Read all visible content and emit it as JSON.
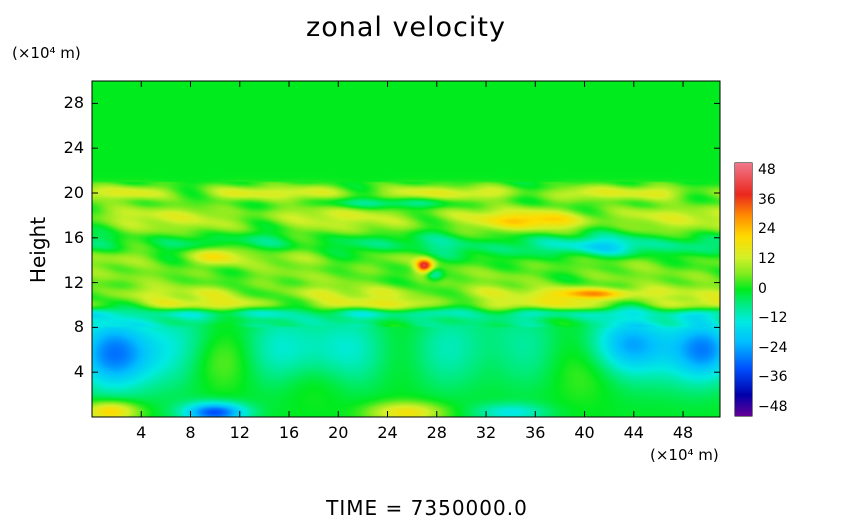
{
  "chart_data": {
    "type": "heatmap",
    "title": "zonal velocity",
    "ylabel": "Height",
    "xlabel": "",
    "x_unit": "(×10⁴ m)",
    "y_unit": "(×10⁴ m)",
    "xlim": [
      0,
      51
    ],
    "ylim": [
      0,
      30
    ],
    "x_ticks": [
      "4",
      "8",
      "12",
      "16",
      "20",
      "24",
      "28",
      "32",
      "36",
      "40",
      "44",
      "48"
    ],
    "y_ticks": [
      "4",
      "8",
      "12",
      "16",
      "20",
      "24",
      "28"
    ],
    "colorbar": {
      "ticks": [
        "48",
        "36",
        "24",
        "12",
        "0",
        "−12",
        "−24",
        "−36",
        "−48"
      ],
      "range": [
        -48,
        48
      ]
    },
    "background_value": 0,
    "features": [
      {
        "kind": "layer",
        "y_center": 20.0,
        "thickness": 0.7,
        "value": 14
      },
      {
        "kind": "layer",
        "y_center": 18.2,
        "thickness": 0.8,
        "value": 7
      },
      {
        "kind": "layer",
        "y_center": 17.2,
        "thickness": 1.2,
        "value": 9
      },
      {
        "kind": "layer",
        "y_center": 15.5,
        "thickness": 1.0,
        "value": -6
      },
      {
        "kind": "layer",
        "y_center": 14.2,
        "thickness": 1.0,
        "value": 8
      },
      {
        "kind": "layer",
        "y_center": 12.5,
        "thickness": 1.0,
        "value": 6
      },
      {
        "kind": "layer",
        "y_center": 11.0,
        "thickness": 0.8,
        "value": 12
      },
      {
        "kind": "layer",
        "y_center": 10.0,
        "thickness": 0.6,
        "value": 14
      },
      {
        "kind": "layer",
        "y_center": 9.3,
        "thickness": 0.5,
        "value": -8
      },
      {
        "kind": "layer",
        "y_center": 6.0,
        "thickness": 3.6,
        "value": -11
      },
      {
        "kind": "blob",
        "x": 2,
        "y": 5.5,
        "rx": 3,
        "ry": 3,
        "value": -16
      },
      {
        "kind": "blob",
        "x": 10,
        "y": 5,
        "rx": 3,
        "ry": 2.5,
        "value": 6
      },
      {
        "kind": "blob",
        "x": 18,
        "y": 3,
        "rx": 3,
        "ry": 2.2,
        "value": 4
      },
      {
        "kind": "blob",
        "x": 33,
        "y": 5.5,
        "rx": 4,
        "ry": 3,
        "value": 5
      },
      {
        "kind": "blob",
        "x": 41,
        "y": 4,
        "rx": 3,
        "ry": 2.5,
        "value": 5
      },
      {
        "kind": "blob",
        "x": 44,
        "y": 6.5,
        "rx": 3,
        "ry": 2.5,
        "value": -12
      },
      {
        "kind": "blob",
        "x": 50,
        "y": 6,
        "rx": 2.5,
        "ry": 2.5,
        "value": -16
      },
      {
        "kind": "blob",
        "x": 1.5,
        "y": 0.5,
        "rx": 2.2,
        "ry": 0.9,
        "value": 22
      },
      {
        "kind": "blob",
        "x": 10,
        "y": 0.4,
        "rx": 2.5,
        "ry": 0.9,
        "value": -30
      },
      {
        "kind": "blob",
        "x": 25.5,
        "y": 0.4,
        "rx": 3,
        "ry": 0.9,
        "value": 18
      },
      {
        "kind": "blob",
        "x": 34,
        "y": 0.4,
        "rx": 3,
        "ry": 0.8,
        "value": -12
      },
      {
        "kind": "blob",
        "x": 27,
        "y": 13.5,
        "rx": 0.7,
        "ry": 0.6,
        "value": 34
      },
      {
        "kind": "blob",
        "x": 27.8,
        "y": 12.7,
        "rx": 0.7,
        "ry": 0.6,
        "value": -14
      },
      {
        "kind": "blob",
        "x": 41,
        "y": 11.0,
        "rx": 3,
        "ry": 0.5,
        "value": 22
      },
      {
        "kind": "blob",
        "x": 42,
        "y": 15.0,
        "rx": 5,
        "ry": 1.0,
        "value": -14
      },
      {
        "kind": "blob",
        "x": 30,
        "y": 14.5,
        "rx": 3,
        "ry": 1.0,
        "value": -10
      },
      {
        "kind": "blob",
        "x": 36,
        "y": 17.5,
        "rx": 4,
        "ry": 0.7,
        "value": 12
      },
      {
        "kind": "blob",
        "x": 24,
        "y": 19.1,
        "rx": 5,
        "ry": 0.5,
        "value": -10
      },
      {
        "kind": "blob",
        "x": 10,
        "y": 14.5,
        "rx": 2,
        "ry": 0.8,
        "value": 14
      }
    ]
  },
  "footer": {
    "time_text": "TIME  =  7350000.0"
  }
}
